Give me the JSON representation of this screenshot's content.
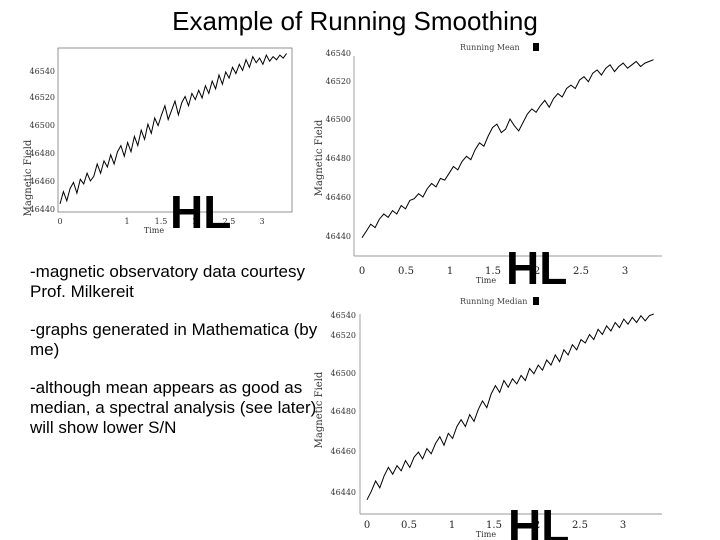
{
  "slide": {
    "title": "Example of Running Smoothing",
    "bullets": [
      "-magnetic observatory data courtesy Prof. Milkereit",
      "-graphs generated in Mathematica (by me)",
      "-although mean appears as good as median, a spectral analysis (see later) will show lower S/N"
    ]
  },
  "chart_data": [
    {
      "type": "line",
      "xlabel": "Time",
      "ylabel": "Magnetic Field",
      "xlim": [
        0,
        3.4
      ],
      "ylim": [
        46438,
        46541
      ],
      "xticks": [
        "0",
        "1",
        "1.5",
        "2",
        "2.5",
        "3"
      ],
      "xtick_values": [
        0,
        1,
        1.5,
        2,
        2.5,
        3
      ],
      "yticks": [
        "46440",
        "46460",
        "46480",
        "46500",
        "46520",
        "46540"
      ],
      "ytick_values": [
        46440,
        46460,
        46480,
        46500,
        46520,
        46540
      ],
      "filter_label": "HL",
      "series": [
        {
          "x": [
            0,
            0.05,
            0.1,
            0.15,
            0.2,
            0.25,
            0.3,
            0.35,
            0.4,
            0.45,
            0.5,
            0.55,
            0.6,
            0.65,
            0.7,
            0.75,
            0.8,
            0.85,
            0.9,
            0.95,
            1.0,
            1.05,
            1.1,
            1.15,
            1.2,
            1.25,
            1.3,
            1.35,
            1.4,
            1.45,
            1.5,
            1.55,
            1.6,
            1.65,
            1.7,
            1.75,
            1.8,
            1.85,
            1.9,
            1.95,
            2.0,
            2.05,
            2.1,
            2.15,
            2.2,
            2.25,
            2.3,
            2.35,
            2.4,
            2.45,
            2.5,
            2.55,
            2.6,
            2.65,
            2.7,
            2.75,
            2.8,
            2.85,
            2.9,
            2.95,
            3.0,
            3.05,
            3.1,
            3.15,
            3.2,
            3.25,
            3.3,
            3.35
          ],
          "y": [
            46442,
            46450,
            46444,
            46452,
            46456,
            46449,
            46458,
            46455,
            46462,
            46457,
            46460,
            46468,
            46462,
            46470,
            46466,
            46474,
            46468,
            46476,
            46480,
            46473,
            46482,
            46476,
            46486,
            46480,
            46490,
            46484,
            46494,
            46488,
            46498,
            46493,
            46500,
            46506,
            46497,
            46503,
            46509,
            46500,
            46508,
            46512,
            46506,
            46514,
            46510,
            46516,
            46511,
            46519,
            46514,
            46522,
            46517,
            46526,
            46520,
            46528,
            46524,
            46531,
            46527,
            46533,
            46529,
            46536,
            46531,
            46538,
            46534,
            46537,
            46533,
            46539,
            46535,
            46538,
            46536,
            46539,
            46537,
            46540
          ]
        }
      ]
    },
    {
      "type": "line",
      "header": "Running Mean",
      "xlabel": "Time",
      "ylabel": "Magnetic Field",
      "xlim": [
        0,
        3.4
      ],
      "ylim": [
        46435,
        46550
      ],
      "xticks": [
        "0",
        "0.5",
        "1",
        "1.5",
        "2",
        "2.5",
        "3"
      ],
      "xtick_values": [
        0,
        0.5,
        1,
        1.5,
        2,
        2.5,
        3
      ],
      "yticks": [
        "46440",
        "46460",
        "46480",
        "46500",
        "46520",
        "46540"
      ],
      "ytick_values": [
        46440,
        46460,
        46480,
        46500,
        46520,
        46540
      ],
      "filter_label": "HL",
      "series": [
        {
          "name": "Running Mean",
          "x": [
            0,
            0.05,
            0.1,
            0.15,
            0.2,
            0.25,
            0.3,
            0.35,
            0.4,
            0.45,
            0.5,
            0.55,
            0.6,
            0.65,
            0.7,
            0.75,
            0.8,
            0.85,
            0.9,
            0.95,
            1.0,
            1.05,
            1.1,
            1.15,
            1.2,
            1.25,
            1.3,
            1.35,
            1.4,
            1.45,
            1.5,
            1.55,
            1.6,
            1.65,
            1.7,
            1.75,
            1.8,
            1.85,
            1.9,
            1.95,
            2.0,
            2.05,
            2.1,
            2.15,
            2.2,
            2.25,
            2.3,
            2.35,
            2.4,
            2.45,
            2.5,
            2.55,
            2.6,
            2.65,
            2.7,
            2.75,
            2.8,
            2.85,
            2.9,
            2.95,
            3.0,
            3.05,
            3.1,
            3.15,
            3.2,
            3.25,
            3.3,
            3.35
          ],
          "y": [
            46444,
            46448,
            46452,
            46450,
            46455,
            46458,
            46456,
            46460,
            46458,
            46463,
            46461,
            46466,
            46467,
            46470,
            46468,
            46473,
            46476,
            46474,
            46479,
            46478,
            46482,
            46486,
            46484,
            46489,
            46492,
            46490,
            46496,
            46500,
            46498,
            46504,
            46509,
            46511,
            46506,
            46508,
            46514,
            46510,
            46507,
            46512,
            46517,
            46520,
            46518,
            46522,
            46525,
            46521,
            46526,
            46529,
            46527,
            46532,
            46534,
            46532,
            46537,
            46539,
            46536,
            46541,
            46543,
            46540,
            46544,
            46546,
            46542,
            46545,
            46547,
            46544,
            46546,
            46548,
            46545,
            46547,
            46548,
            46549
          ]
        }
      ]
    },
    {
      "type": "line",
      "header": "Running Median",
      "xlabel": "Time",
      "ylabel": "Magnetic Field",
      "xlim": [
        0,
        3.4
      ],
      "ylim": [
        46435,
        46550
      ],
      "xticks": [
        "0",
        "0.5",
        "1",
        "1.5",
        "2",
        "2.5",
        "3"
      ],
      "xtick_values": [
        0,
        0.5,
        1,
        1.5,
        2,
        2.5,
        3
      ],
      "yticks": [
        "46440",
        "46460",
        "46480",
        "46500",
        "46520",
        "46540"
      ],
      "ytick_values": [
        46440,
        46460,
        46480,
        46500,
        46520,
        46540
      ],
      "filter_label": "HL",
      "series": [
        {
          "name": "Running Median",
          "x": [
            0,
            0.05,
            0.1,
            0.15,
            0.2,
            0.25,
            0.3,
            0.35,
            0.4,
            0.45,
            0.5,
            0.55,
            0.6,
            0.65,
            0.7,
            0.75,
            0.8,
            0.85,
            0.9,
            0.95,
            1.0,
            1.05,
            1.1,
            1.15,
            1.2,
            1.25,
            1.3,
            1.35,
            1.4,
            1.45,
            1.5,
            1.55,
            1.6,
            1.65,
            1.7,
            1.75,
            1.8,
            1.85,
            1.9,
            1.95,
            2.0,
            2.05,
            2.1,
            2.15,
            2.2,
            2.25,
            2.3,
            2.35,
            2.4,
            2.45,
            2.5,
            2.55,
            2.6,
            2.65,
            2.7,
            2.75,
            2.8,
            2.85,
            2.9,
            2.95,
            3.0,
            3.05,
            3.1,
            3.15,
            3.2,
            3.25,
            3.3,
            3.35
          ],
          "y": [
            46441,
            46446,
            46452,
            46448,
            46455,
            46460,
            46456,
            46461,
            46458,
            46464,
            46460,
            46466,
            46469,
            46465,
            46471,
            46468,
            46474,
            46478,
            46473,
            46480,
            46477,
            46484,
            46488,
            46484,
            46491,
            46487,
            46494,
            46499,
            46495,
            46503,
            46508,
            46504,
            46511,
            46507,
            46512,
            46509,
            46514,
            46511,
            46518,
            46515,
            46520,
            46517,
            46523,
            46520,
            46526,
            46522,
            46529,
            46526,
            46532,
            46529,
            46535,
            46533,
            46538,
            46535,
            46541,
            46538,
            46543,
            46540,
            46545,
            46542,
            46547,
            46544,
            46548,
            46545,
            46549,
            46546,
            46549,
            46550
          ]
        }
      ]
    }
  ]
}
